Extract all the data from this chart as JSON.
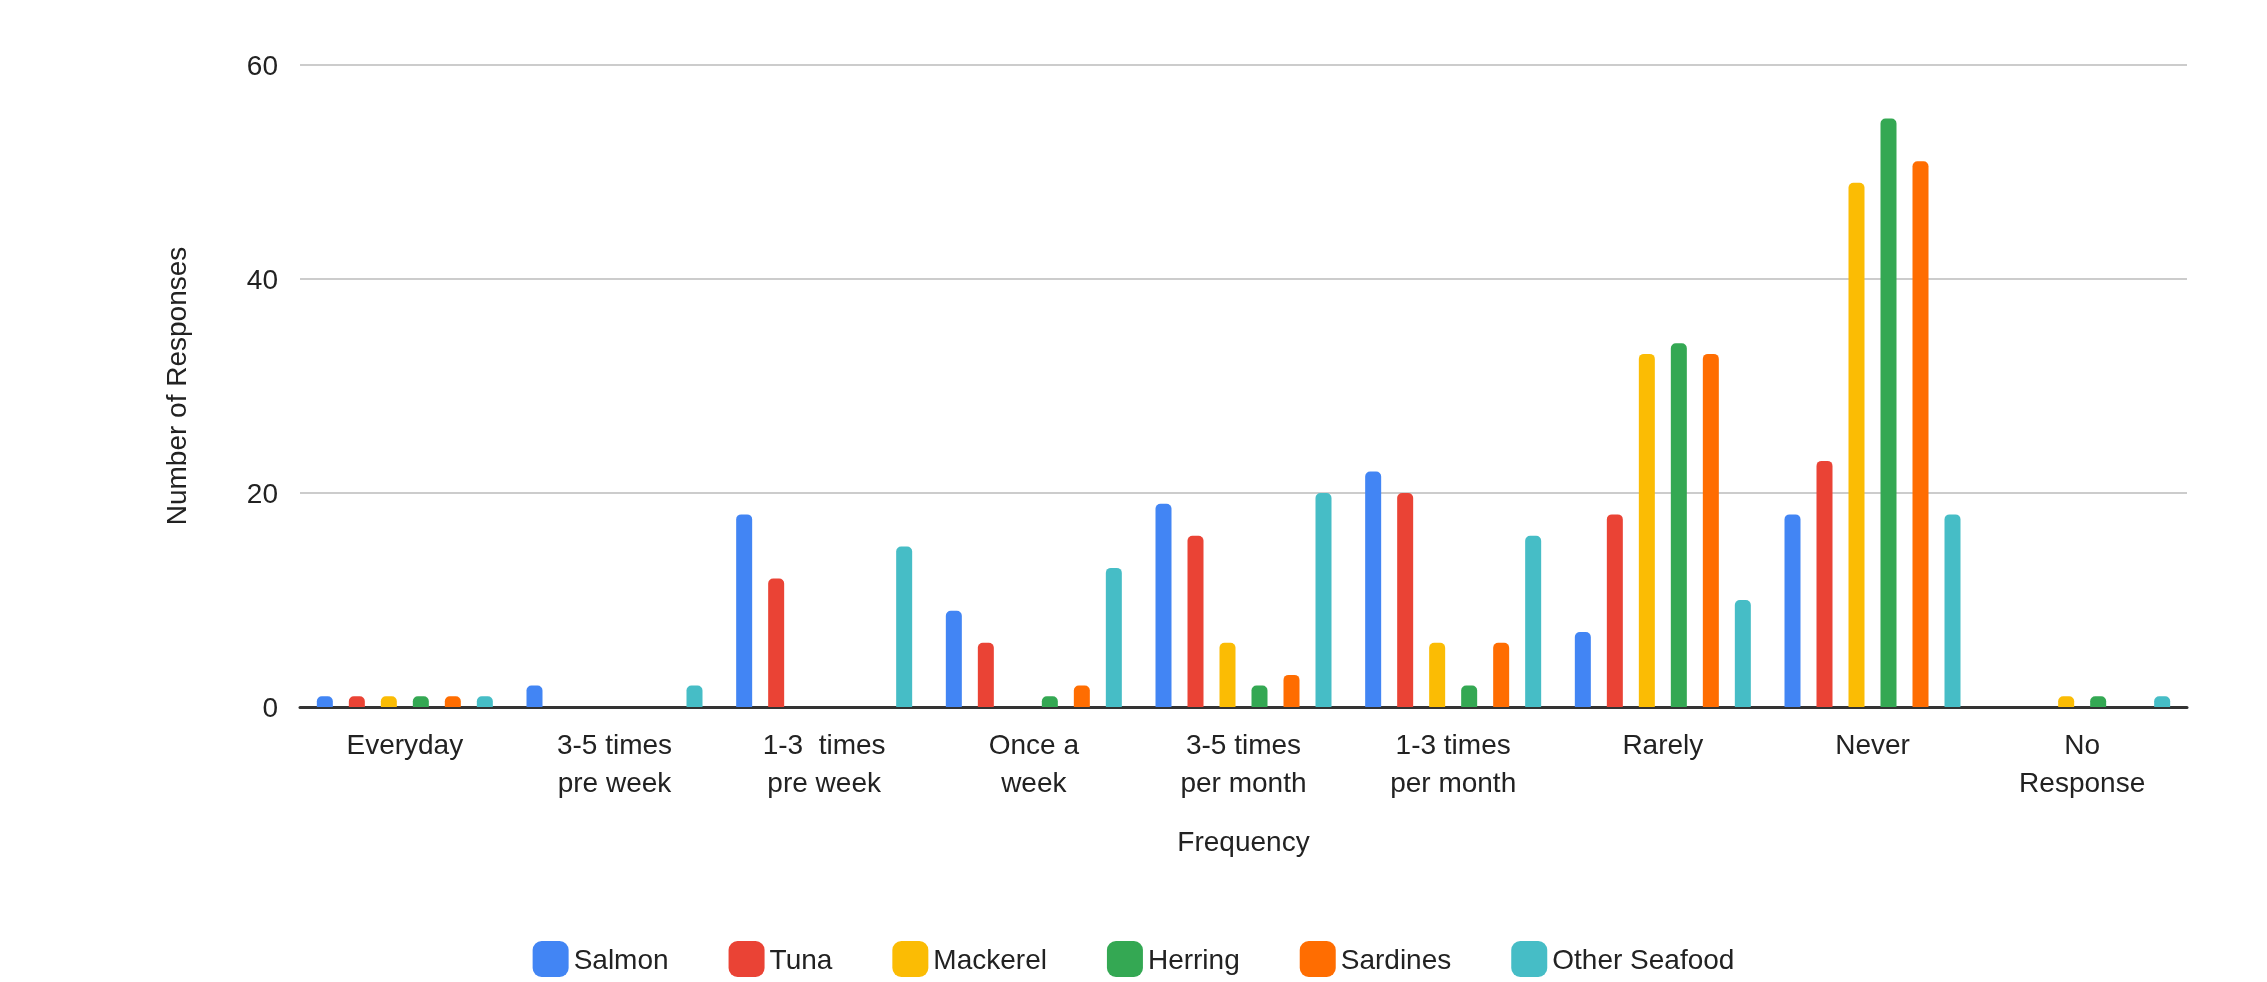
{
  "chart_data": {
    "type": "bar",
    "xlabel": "Frequency",
    "ylabel": "Number of Responses",
    "categories": [
      "Everyday",
      "3-5 times\npre week",
      "1-3  times\npre week",
      "Once a\nweek",
      "3-5 times\nper month",
      "1-3 times\nper month",
      "Rarely",
      "Never",
      "No\nResponse"
    ],
    "series": [
      {
        "name": "Salmon",
        "color": "#4285f4",
        "values": [
          1,
          2,
          18,
          9,
          19,
          22,
          7,
          18,
          0
        ]
      },
      {
        "name": "Tuna",
        "color": "#ea4335",
        "values": [
          1,
          0,
          12,
          6,
          16,
          20,
          18,
          23,
          0
        ]
      },
      {
        "name": "Mackerel",
        "color": "#fbbc04",
        "values": [
          1,
          0,
          0,
          0,
          6,
          6,
          33,
          49,
          1
        ]
      },
      {
        "name": "Herring",
        "color": "#34a853",
        "values": [
          1,
          0,
          0,
          1,
          2,
          2,
          34,
          55,
          1
        ]
      },
      {
        "name": "Sardines",
        "color": "#ff6d01",
        "values": [
          1,
          0,
          0,
          2,
          3,
          6,
          33,
          51,
          0
        ]
      },
      {
        "name": "Other Seafood",
        "color": "#46bdc6",
        "values": [
          1,
          2,
          15,
          13,
          20,
          16,
          10,
          18,
          1
        ]
      }
    ],
    "ylim": [
      0,
      60
    ],
    "yticks": [
      0,
      20,
      40,
      60
    ],
    "grid": "y",
    "legend": "bottom"
  }
}
